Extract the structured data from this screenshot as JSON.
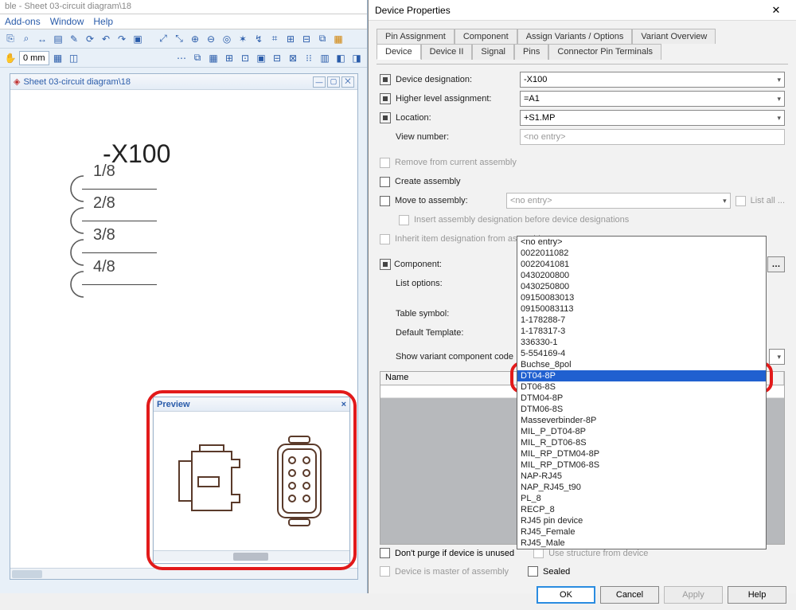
{
  "app": {
    "title_fragment": "ble - Sheet 03-circuit diagram\\18",
    "menus": [
      "Add-ons",
      "Window",
      "Help"
    ],
    "mm_label": "0 mm",
    "sheet_tab": "Sheet 03-circuit diagram\\18"
  },
  "diagram": {
    "device_label": "-X100",
    "pins": [
      "1/8",
      "2/8",
      "3/8",
      "4/8"
    ],
    "stroke": "#5a5a5a",
    "text_color": "#444"
  },
  "preview": {
    "title": "Preview"
  },
  "dialog": {
    "title": "Device Properties",
    "tabs_upper": [
      "Pin Assignment",
      "Component",
      "Assign Variants / Options",
      "Variant Overview"
    ],
    "tabs_lower": [
      "Device",
      "Device II",
      "Signal",
      "Pins",
      "Connector Pin Terminals"
    ],
    "active_tab": "Device",
    "fields": {
      "device_designation": {
        "label": "Device designation:",
        "value": "-X100"
      },
      "higher_level": {
        "label": "Higher level assignment:",
        "value": "=A1"
      },
      "location": {
        "label": "Location:",
        "value": "+S1.MP"
      },
      "view_number": {
        "label": "View number:",
        "value": "<no entry>"
      }
    },
    "assembly": {
      "remove": "Remove from current assembly",
      "create": "Create assembly",
      "move": "Move to assembly:",
      "move_value": "<no entry>",
      "list_all": "List all ...",
      "insert_desc": "Insert assembly designation before device designations",
      "inherit": "Inherit item designation from assembly"
    },
    "component": {
      "label": "Component:",
      "value": "DT04-8P",
      "list_options": "List options:",
      "table_symbol": "Table symbol:",
      "default_template": "Default Template:",
      "show_variant": "Show variant component code"
    },
    "dropdown": [
      "<no entry>",
      "0022011082",
      "0022041081",
      "0430200800",
      "0430250800",
      "09150083013",
      "09150083113",
      "1-178288-7",
      "1-178317-3",
      "336330-1",
      "5-554169-4",
      "Buchse_8pol",
      "DT04-8P",
      "DT06-8S",
      "DTM04-8P",
      "DTM06-8S",
      "Masseverbinder-8P",
      "MIL_P_DT04-8P",
      "MIL_R_DT06-8S",
      "MIL_RP_DTM04-8P",
      "MIL_RP_DTM06-8S",
      "NAP-RJ45",
      "NAP_RJ45_t90",
      "PL_8",
      "RECP_8",
      "RJ45 pin device",
      "RJ45_Female",
      "RJ45_Male"
    ],
    "dropdown_highlight": "DT04-8P",
    "list_col": "Name",
    "bottom": {
      "dont_purge": "Don't purge if device is unused",
      "use_structure": "Use structure from device",
      "master": "Device is master of assembly",
      "sealed": "Sealed"
    },
    "buttons": {
      "ok": "OK",
      "cancel": "Cancel",
      "apply": "Apply",
      "help": "Help"
    }
  },
  "colors": {
    "accent": "#2a5caa",
    "highlight_red": "#e21a1a",
    "dropdown_hl": "#2060d0"
  }
}
